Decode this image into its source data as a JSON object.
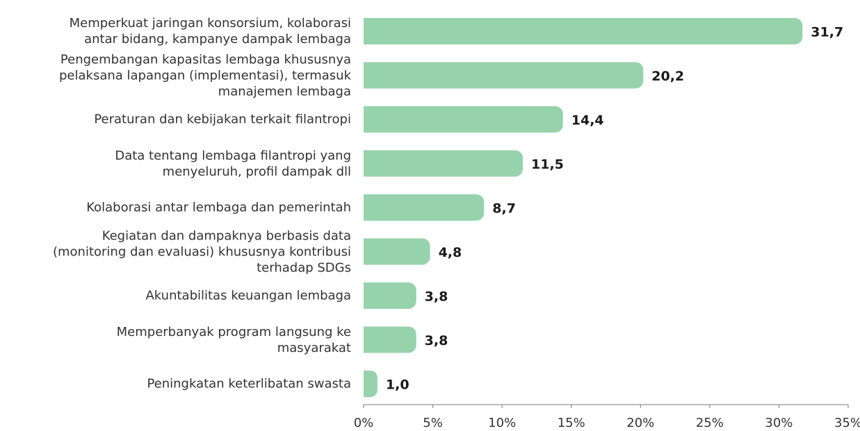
{
  "chart_data": {
    "type": "bar",
    "orientation": "horizontal",
    "categories": [
      "Memperkuat jaringan konsorsium, kolaborasi\nantar bidang, kampanye dampak lembaga",
      "Pengembangan kapasitas lembaga khususnya\npelaksana lapangan (implementasi), termasuk\nmanajemen lembaga",
      "Peraturan dan kebijakan terkait filantropi",
      "Data tentang lembaga filantropi yang\nmenyeluruh, profil dampak dll",
      "Kolaborasi antar lembaga dan pemerintah",
      "Kegiatan dan dampaknya berbasis data\n(monitoring dan evaluasi) khususnya kontribusi\nterhadap SDGs",
      "Akuntabilitas keuangan lembaga",
      "Memperbanyak program langsung ke\nmasyarakat",
      "Peningkatan keterlibatan swasta"
    ],
    "values": [
      31.7,
      20.2,
      14.4,
      11.5,
      8.7,
      4.8,
      3.8,
      3.8,
      1.0
    ],
    "value_labels": [
      "31,7",
      "20,2",
      "14,4",
      "11,5",
      "8,7",
      "4,8",
      "3,8",
      "3,8",
      "1,0"
    ],
    "color": "#96d3ac",
    "xlim": [
      0,
      35
    ],
    "xticks": [
      {
        "value": 0,
        "label": "0%"
      },
      {
        "value": 5,
        "label": "5%"
      },
      {
        "value": 10,
        "label": "10%"
      },
      {
        "value": 15,
        "label": "15%"
      },
      {
        "value": 20,
        "label": "20%"
      },
      {
        "value": 25,
        "label": "25%"
      },
      {
        "value": 30,
        "label": "30%"
      },
      {
        "value": 35,
        "label": "35%"
      }
    ],
    "grid": false
  }
}
